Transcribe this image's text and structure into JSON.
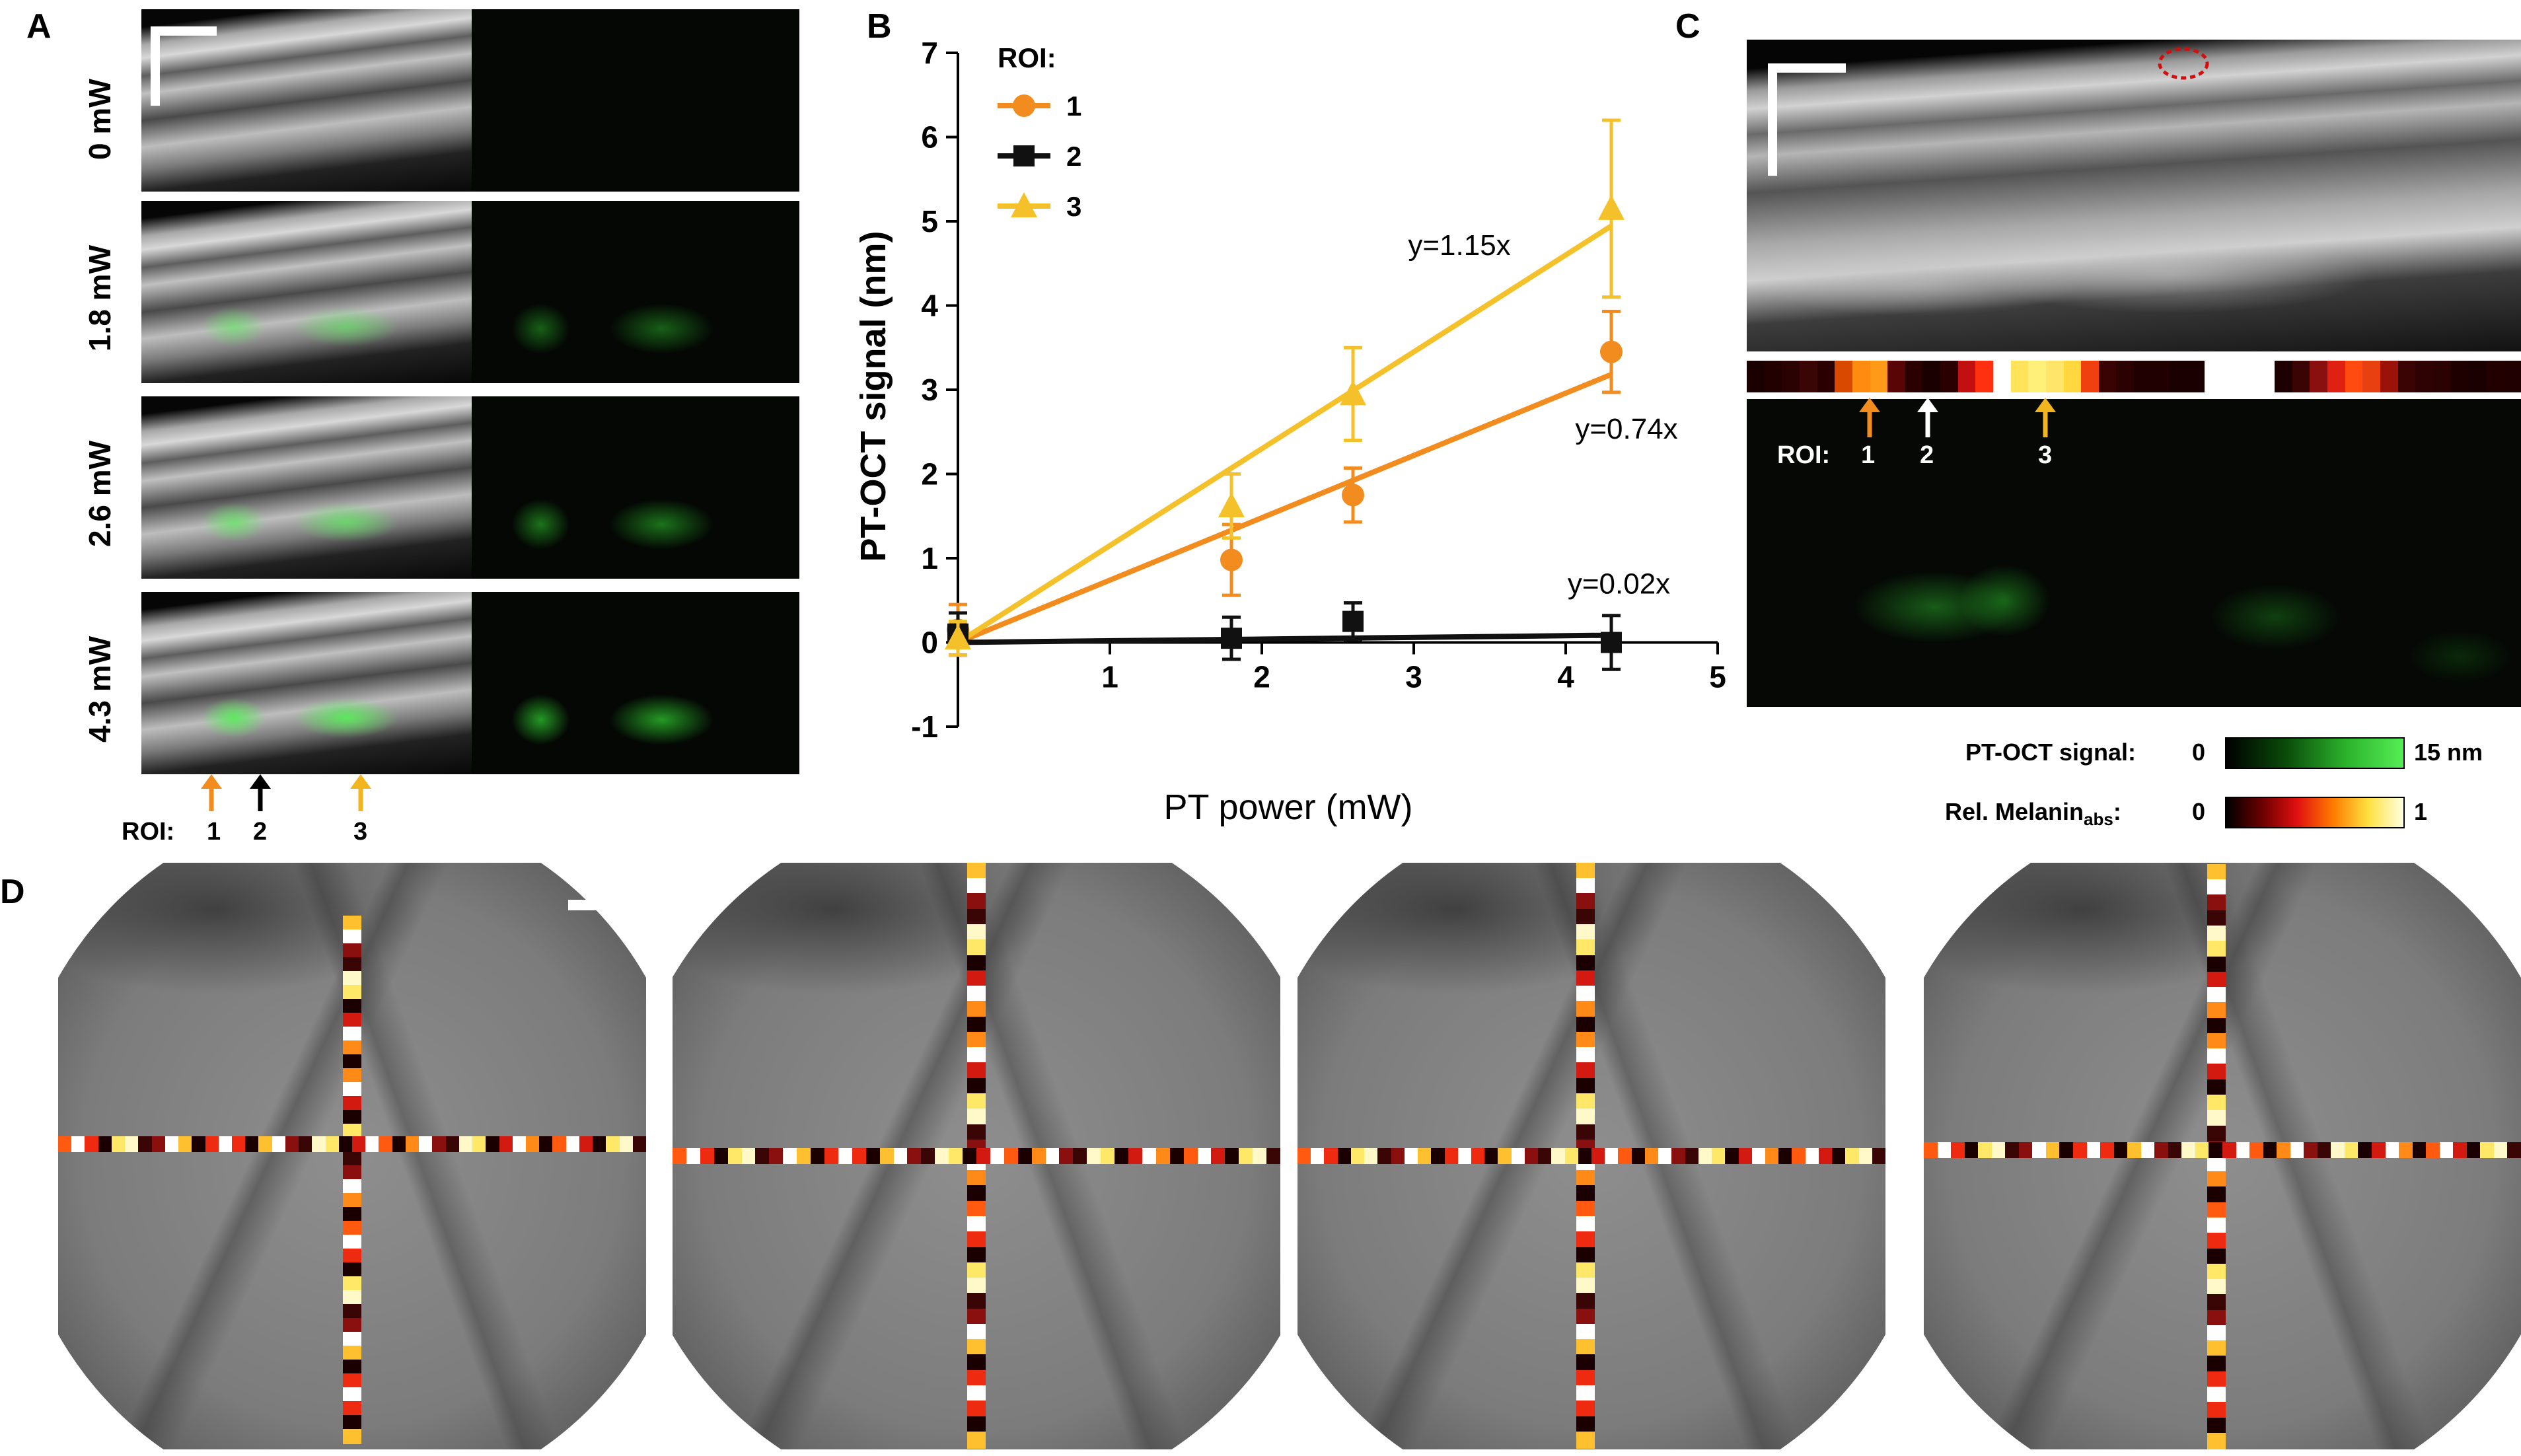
{
  "panels": {
    "a": {
      "label": "A",
      "rows": [
        {
          "power": "0 mW",
          "level": 0.0
        },
        {
          "power": "1.8 mW",
          "level": 0.4
        },
        {
          "power": "2.6 mW",
          "level": 0.6
        },
        {
          "power": "4.3 mW",
          "level": 1.0
        }
      ],
      "roi_prefix": "ROI:",
      "roi_labels": [
        "1",
        "2",
        "3"
      ],
      "arrow_colors": [
        "#f28c1e",
        "#000000",
        "#f2b51e"
      ]
    },
    "b": {
      "label": "B"
    },
    "c": {
      "label": "C",
      "roi_prefix": "ROI:",
      "roi_labels": [
        "1",
        "2",
        "3"
      ],
      "arrow_colors": [
        "#f28c1e",
        "#ffffff",
        "#f2b51e"
      ],
      "colorbar_ptoct": {
        "label": "PT-OCT signal:",
        "min": "0",
        "max": "15 nm"
      },
      "colorbar_melanin": {
        "label_main": "Rel. Melanin",
        "label_sub": "abs",
        "label_end": ":",
        "min": "0",
        "max": "1"
      }
    },
    "d": {
      "label": "D"
    }
  },
  "chart_data": {
    "type": "scatter",
    "xlabel": "PT power (mW)",
    "ylabel": "PT-OCT signal (nm)",
    "xlim": [
      0,
      5
    ],
    "ylim": [
      -1,
      7
    ],
    "xticks": [
      "1",
      "2",
      "3",
      "4",
      "5"
    ],
    "yticks": [
      "-1",
      "0",
      "1",
      "2",
      "3",
      "4",
      "5",
      "6",
      "7"
    ],
    "legend_title": "ROI:",
    "legend_position": "top-left",
    "series": [
      {
        "name": "1",
        "marker": "circle",
        "color": "#f28c1e",
        "x": [
          0,
          1.8,
          2.6,
          4.3
        ],
        "y": [
          0.15,
          0.98,
          1.75,
          3.45
        ],
        "err": [
          0.3,
          0.42,
          0.32,
          0.48
        ],
        "fit_label": "y=0.74x",
        "slope": 0.74
      },
      {
        "name": "2",
        "marker": "square",
        "color": "#111111",
        "x": [
          0,
          1.8,
          2.6,
          4.3
        ],
        "y": [
          0.1,
          0.05,
          0.25,
          0.0
        ],
        "err": [
          0.25,
          0.25,
          0.22,
          0.32
        ],
        "fit_label": "y=0.02x",
        "slope": 0.02
      },
      {
        "name": "3",
        "marker": "triangle",
        "color": "#f5c12a",
        "x": [
          0,
          1.8,
          2.6,
          4.3
        ],
        "y": [
          0.05,
          1.62,
          2.95,
          5.15
        ],
        "err": [
          0.2,
          0.38,
          0.55,
          1.05
        ],
        "fit_label": "y=1.15x",
        "slope": 1.15
      }
    ]
  }
}
